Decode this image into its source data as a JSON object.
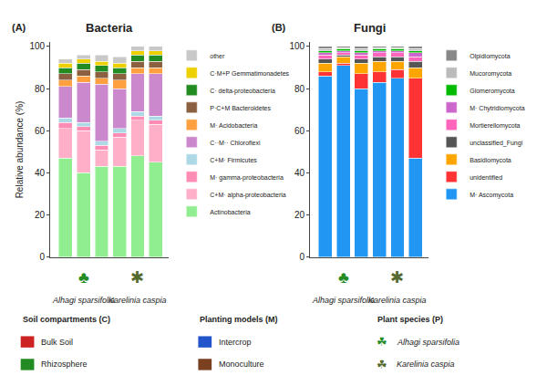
{
  "chart_data": [
    {
      "type": "bar",
      "stacked": true,
      "title": "Bacteria",
      "label": "(A)",
      "y_label": "Relative abundance (%)",
      "categories": [
        null,
        null,
        null,
        null,
        null,
        null
      ],
      "tick_labels": "y",
      "ylim": [
        0,
        102
      ],
      "yticks": [
        0,
        20,
        40,
        60,
        80,
        100
      ],
      "grid": false,
      "legend": "right",
      "series": [
        {
          "name": "Actinobacteria",
          "color": "#90EE90",
          "values": [
            47,
            40,
            43,
            43,
            48,
            45
          ]
        },
        {
          "name": "C+M· alpha-proteobacteria",
          "color": "#FFB0C8",
          "values": [
            14,
            20,
            8,
            14,
            17,
            18
          ]
        },
        {
          "name": "M· gamma-proteobacteria",
          "color": "#FF8CB4",
          "values": [
            3,
            2,
            2,
            2,
            2,
            2
          ]
        },
        {
          "name": "C+M· Firmicutes",
          "color": "#ADD8E6",
          "values": [
            2,
            2,
            2,
            2,
            2,
            2
          ]
        },
        {
          "name": "C··M·· Chloroflexi",
          "color": "#CC88CC",
          "values": [
            15,
            19,
            27,
            19,
            18,
            20
          ]
        },
        {
          "name": "M· Acidobacteria",
          "color": "#FFA040",
          "values": [
            3,
            3,
            3,
            4,
            3,
            3
          ]
        },
        {
          "name": "P·C+M Bacteroidetes",
          "color": "#8B6040",
          "values": [
            3,
            3,
            3,
            3,
            3,
            3
          ]
        },
        {
          "name": "C· delta-proteobacteria",
          "color": "#228B22",
          "values": [
            3,
            3,
            3,
            3,
            3,
            3
          ]
        },
        {
          "name": "C·M+P Gemmatimonadetes",
          "color": "#EED000",
          "values": [
            2,
            2,
            2,
            2,
            2,
            2
          ]
        },
        {
          "name": "other",
          "color": "#C8C8C8",
          "values": [
            2,
            2,
            3,
            3,
            2,
            2
          ]
        }
      ],
      "annotations": [
        {
          "text": "♣",
          "x": 1,
          "color": "#228B22"
        },
        {
          "text": "✱",
          "x": 4,
          "color": "#556B2F"
        },
        {
          "text": "Alhagi sparsifolia",
          "x": 1
        },
        {
          "text": "Karelinia caspia",
          "x": 4
        }
      ]
    },
    {
      "type": "bar",
      "stacked": true,
      "title": "Fungi",
      "label": "(B)",
      "categories": [
        null,
        null,
        null,
        null,
        null,
        null
      ],
      "tick_labels": "y",
      "ylim": [
        0,
        102
      ],
      "yticks": [
        0,
        20,
        40,
        60,
        80,
        100
      ],
      "grid": false,
      "legend": "right",
      "series": [
        {
          "name": "M· Ascomycota",
          "color": "#2196F3",
          "values": [
            86,
            91,
            80,
            83,
            85,
            47
          ]
        },
        {
          "name": "unidentified",
          "color": "#FF3333",
          "values": [
            2,
            1,
            7,
            5,
            4,
            38
          ]
        },
        {
          "name": "Basidiomycota",
          "color": "#FFA500",
          "values": [
            4,
            3,
            5,
            5,
            4,
            5
          ]
        },
        {
          "name": "unclassified_Fungi",
          "color": "#555555",
          "values": [
            2,
            1,
            2,
            2,
            2,
            3
          ]
        },
        {
          "name": "Mortierellomycota",
          "color": "#FF66BB",
          "values": [
            2,
            1,
            2,
            2,
            2,
            2
          ]
        },
        {
          "name": "M· Chytridiomycota",
          "color": "#CC66CC",
          "values": [
            1,
            1,
            1,
            1,
            1,
            2
          ]
        },
        {
          "name": "Glomeromycota",
          "color": "#00BB00",
          "values": [
            1,
            1,
            1,
            1,
            1,
            1
          ]
        },
        {
          "name": "Mucoromycota",
          "color": "#BBBBBB",
          "values": [
            1,
            0.5,
            1,
            0.5,
            0.5,
            1
          ]
        },
        {
          "name": "Olpidiomycota",
          "color": "#888888",
          "values": [
            1,
            0.5,
            1,
            0.5,
            0.5,
            1
          ]
        }
      ],
      "annotations": [
        {
          "text": "♣",
          "x": 1,
          "color": "#228B22"
        },
        {
          "text": "✱",
          "x": 4,
          "color": "#556B2F"
        },
        {
          "text": "Alhagi sparsifolia",
          "x": 1
        },
        {
          "text": "Karelinia caspia",
          "x": 4
        }
      ]
    },
    {
      "type": "key",
      "sections": [
        {
          "title": "Soil compartments (C)",
          "items": [
            {
              "name": "Bulk Soil",
              "color": "#CC2222"
            },
            {
              "name": "Rhizosphere",
              "color": "#228B22"
            }
          ]
        },
        {
          "title": "Planting models (M)",
          "items": [
            {
              "name": "Intercrop",
              "color": "#2255CC"
            },
            {
              "name": "Monoculture",
              "color": "#7B4020"
            }
          ]
        },
        {
          "title": "Plant species (P)",
          "items": [
            {
              "name": "Alhagi sparsifolia",
              "icon": "☘",
              "color": "#228B22"
            },
            {
              "name": "Karelinia caspia",
              "icon": "☘",
              "color": "#556B2F"
            }
          ]
        }
      ]
    }
  ]
}
